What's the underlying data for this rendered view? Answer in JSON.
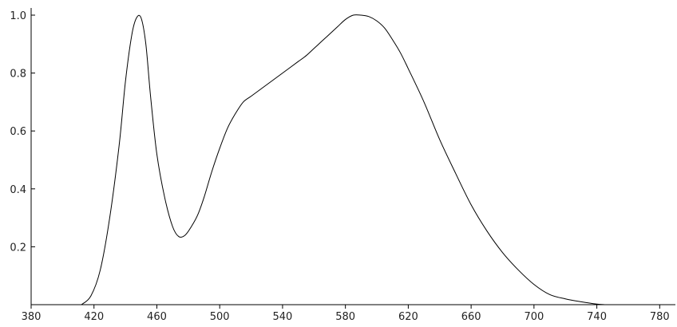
{
  "chart_data": {
    "type": "line",
    "title": "",
    "xlabel": "",
    "ylabel": "",
    "xlim": [
      380,
      790
    ],
    "ylim": [
      0,
      1.0
    ],
    "grid": false,
    "legend": "none",
    "x_ticks": [
      "380",
      "420",
      "460",
      "500",
      "540",
      "580",
      "620",
      "660",
      "700",
      "740",
      "780"
    ],
    "y_ticks": [
      "0.2",
      "0.4",
      "0.6",
      "0.8",
      "1.0"
    ],
    "series": [
      {
        "color": "#000000",
        "x": [
          412,
          418,
          424,
          430,
          436,
          440,
          444,
          447,
          450,
          453,
          456,
          460,
          465,
          470,
          474,
          478,
          482,
          486,
          490,
          495,
          500,
          505,
          510,
          515,
          520,
          525,
          530,
          535,
          540,
          545,
          550,
          555,
          560,
          565,
          570,
          575,
          580,
          585,
          590,
          595,
          600,
          605,
          610,
          615,
          620,
          630,
          640,
          650,
          660,
          670,
          680,
          690,
          700,
          710,
          720,
          730,
          740,
          745
        ],
        "y": [
          0.0,
          0.03,
          0.12,
          0.3,
          0.55,
          0.77,
          0.93,
          0.99,
          0.99,
          0.9,
          0.72,
          0.52,
          0.37,
          0.27,
          0.235,
          0.24,
          0.27,
          0.31,
          0.37,
          0.46,
          0.54,
          0.61,
          0.66,
          0.7,
          0.72,
          0.74,
          0.76,
          0.78,
          0.8,
          0.82,
          0.84,
          0.86,
          0.885,
          0.91,
          0.935,
          0.96,
          0.985,
          1.0,
          1.0,
          0.995,
          0.98,
          0.955,
          0.915,
          0.87,
          0.815,
          0.7,
          0.57,
          0.455,
          0.345,
          0.255,
          0.18,
          0.12,
          0.07,
          0.035,
          0.02,
          0.01,
          0.002,
          0.0
        ]
      }
    ]
  }
}
